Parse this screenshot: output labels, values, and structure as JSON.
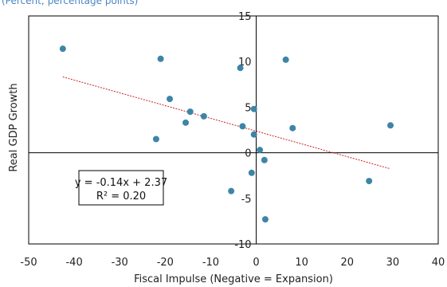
{
  "subtitle": "(Percent; percentage points)",
  "chart_data": {
    "type": "scatter",
    "xlabel": "Fiscal Impulse (Negative = Expansion)",
    "ylabel": "Real GDP Growth",
    "xlim": [
      -50,
      40
    ],
    "ylim": [
      -10,
      15
    ],
    "x_ticks": [
      -50,
      -40,
      -30,
      -20,
      -10,
      0,
      10,
      20,
      30,
      40
    ],
    "y_ticks": [
      -10,
      -5,
      0,
      5,
      10,
      15
    ],
    "series": [
      {
        "color": "#3d85a8",
        "points": [
          {
            "x": -42.5,
            "y": 11.4
          },
          {
            "x": -21.0,
            "y": 10.3
          },
          {
            "x": -3.5,
            "y": 9.3
          },
          {
            "x": 6.5,
            "y": 10.2
          },
          {
            "x": -19.0,
            "y": 5.9
          },
          {
            "x": -14.5,
            "y": 4.5
          },
          {
            "x": -11.5,
            "y": 4.0
          },
          {
            "x": -15.5,
            "y": 3.3
          },
          {
            "x": -22.0,
            "y": 1.5
          },
          {
            "x": -3.0,
            "y": 2.9
          },
          {
            "x": -0.5,
            "y": 4.8
          },
          {
            "x": -0.5,
            "y": 2.0
          },
          {
            "x": 0.8,
            "y": 0.3
          },
          {
            "x": 8.0,
            "y": 2.7
          },
          {
            "x": 29.5,
            "y": 3.0
          },
          {
            "x": 1.8,
            "y": -0.8
          },
          {
            "x": -1.0,
            "y": -2.2
          },
          {
            "x": 24.8,
            "y": -3.1
          },
          {
            "x": -5.5,
            "y": -4.2
          },
          {
            "x": 2.0,
            "y": -7.3
          }
        ]
      }
    ],
    "trendline": {
      "color": "#cc2222",
      "slope": -0.14,
      "intercept": 2.37,
      "x_range": [
        -42.5,
        29.5
      ]
    },
    "annotation": {
      "line1": "y = -0.14x + 2.37",
      "line2": "R² = 0.20"
    }
  }
}
